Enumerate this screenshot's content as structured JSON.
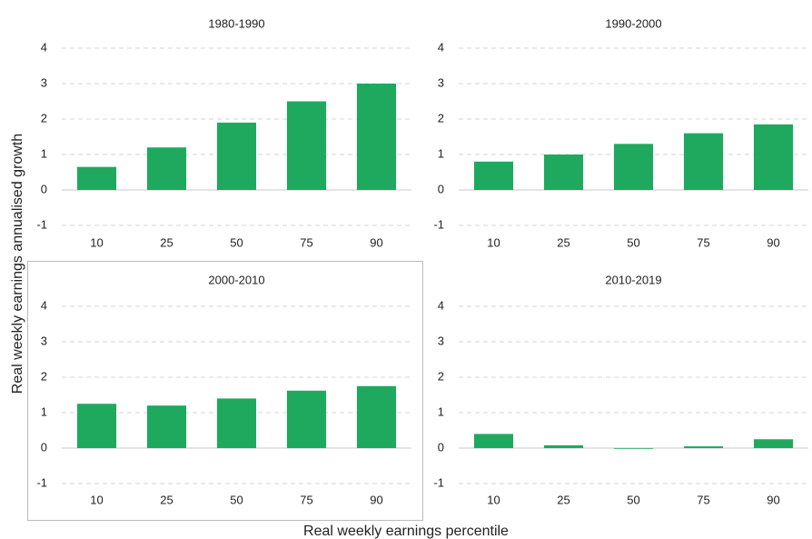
{
  "y_label": "Real weekly earnings annualised growth",
  "x_label": "Real weekly earnings percentile",
  "chart_data": [
    {
      "type": "bar",
      "title": "1980-1990",
      "categories": [
        "10",
        "25",
        "50",
        "75",
        "90"
      ],
      "values": [
        0.65,
        1.2,
        1.9,
        2.5,
        3.0
      ],
      "color": "#1fa95f",
      "ylim": [
        -1,
        4
      ],
      "yticks": [
        -1,
        0,
        1,
        2,
        3,
        4
      ],
      "grid": true
    },
    {
      "type": "bar",
      "title": "1990-2000",
      "categories": [
        "10",
        "25",
        "50",
        "75",
        "90"
      ],
      "values": [
        0.8,
        1.0,
        1.3,
        1.6,
        1.85
      ],
      "color": "#1fa95f",
      "ylim": [
        -1,
        4
      ],
      "yticks": [
        -1,
        0,
        1,
        2,
        3,
        4
      ],
      "grid": true
    },
    {
      "type": "bar",
      "title": "2000-2010",
      "categories": [
        "10",
        "25",
        "50",
        "75",
        "90"
      ],
      "values": [
        1.25,
        1.2,
        1.4,
        1.62,
        1.75
      ],
      "color": "#1fa95f",
      "ylim": [
        -1,
        4
      ],
      "yticks": [
        -1,
        0,
        1,
        2,
        3,
        4
      ],
      "grid": true
    },
    {
      "type": "bar",
      "title": "2010-2019",
      "categories": [
        "10",
        "25",
        "50",
        "75",
        "90"
      ],
      "values": [
        0.4,
        0.08,
        -0.02,
        0.05,
        0.25
      ],
      "color": "#1fa95f",
      "ylim": [
        -1,
        4
      ],
      "yticks": [
        -1,
        0,
        1,
        2,
        3,
        4
      ],
      "grid": true
    }
  ]
}
